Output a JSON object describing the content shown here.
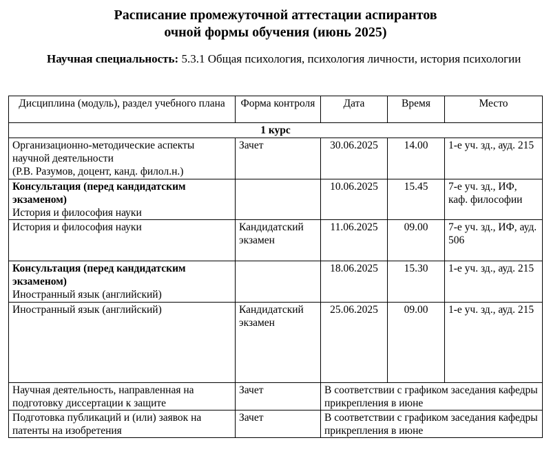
{
  "title": {
    "line1": "Расписание промежуточной аттестации аспирантов",
    "line2": "очной формы обучения (июнь 2025)"
  },
  "specialty": {
    "label": "Научная специальность:",
    "value": " 5.3.1 Общая психология, психология личности, история психологии"
  },
  "table": {
    "headers": [
      "Дисциплина (модуль), раздел учебного плана",
      "Форма контроля",
      "Дата",
      "Время",
      "Место"
    ],
    "course": "1 курс",
    "rows": [
      {
        "bold": "",
        "lines": [
          "Организационно-методические аспекты научной деятельности",
          "(Р.В. Разумов, доцент, канд. филол.н.)"
        ],
        "form": "Зачет",
        "date": "30.06.2025",
        "time": "14.00",
        "place": "1-е уч. зд., ауд. 215"
      },
      {
        "bold": "Консультация (перед кандидатским экзаменом)",
        "lines": [
          "История и философия науки"
        ],
        "form": "",
        "date": "10.06.2025",
        "time": "15.45",
        "place": "7-е уч. зд., ИФ, каф. философии"
      },
      {
        "bold": "",
        "lines": [
          "История и философия науки"
        ],
        "form": "Кандидатский экзамен",
        "date": "11.06.2025",
        "time": "09.00",
        "place": "7-е уч. зд., ИФ, ауд. 506"
      },
      {
        "bold": "Консультация (перед кандидатским экзаменом)",
        "lines": [
          "Иностранный язык (английский)"
        ],
        "form": "",
        "date": "18.06.2025",
        "time": "15.30",
        "place": "1-е уч. зд., ауд. 215"
      },
      {
        "bold": "",
        "lines": [
          "Иностранный язык (английский)"
        ],
        "form": "Кандидатский экзамен",
        "date": "25.06.2025",
        "time": "09.00",
        "place": "1-е уч. зд., ауд. 215"
      }
    ],
    "merged_rows": [
      {
        "discipline": "Научная деятельность, направленная на подготовку диссертации к защите",
        "form": "Зачет",
        "note": "В соответствии с графиком заседания кафедры прикрепления в июне"
      },
      {
        "discipline": "Подготовка публикаций и (или) заявок на патенты на изобретения",
        "form": "Зачет",
        "note": "В соответствии с графиком заседания кафедры прикрепления в июне"
      }
    ]
  }
}
